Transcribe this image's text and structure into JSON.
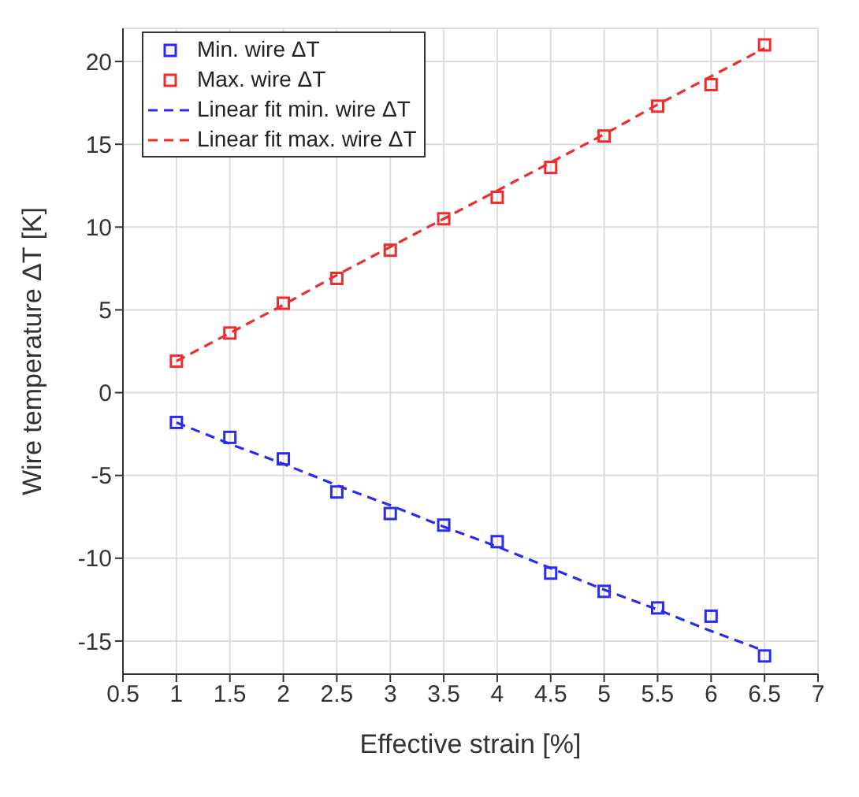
{
  "chart_data": {
    "type": "scatter",
    "xlabel": "Effective strain [%]",
    "ylabel": "Wire temperature ΔT [K]",
    "xlim": [
      0.5,
      7
    ],
    "xticks": [
      0.5,
      1,
      1.5,
      2,
      2.5,
      3,
      3.5,
      4,
      4.5,
      5,
      5.5,
      6,
      6.5,
      7
    ],
    "ylim": [
      -17,
      22
    ],
    "yticks": [
      -15,
      -10,
      -5,
      0,
      5,
      10,
      15,
      20
    ],
    "grid": true,
    "legend": "top left",
    "marker": "square",
    "x": [
      1,
      1.5,
      2,
      2.5,
      3,
      3.5,
      4,
      4.5,
      5,
      5.5,
      6,
      6.5
    ],
    "series": [
      {
        "name": "Min. wire ΔT",
        "color": "#2b2bf0",
        "values": [
          -1.8,
          -2.7,
          -4.0,
          -6.0,
          -7.3,
          -8.0,
          -9.0,
          -10.9,
          -12.0,
          -13.0,
          -13.5,
          -15.9
        ]
      },
      {
        "name": "Max. wire ΔT",
        "color": "#f02b2b",
        "values": [
          1.9,
          3.6,
          5.4,
          6.9,
          8.6,
          10.5,
          11.8,
          13.6,
          15.5,
          17.3,
          18.6,
          21.0
        ]
      },
      {
        "name": "Linear fit min. wire ΔT",
        "type": "line",
        "marker": "none",
        "line_style": "dashed",
        "color": "#2b2bf0",
        "values": [
          -1.8,
          -3.1,
          -4.3,
          -5.6,
          -6.8,
          -8.1,
          -9.3,
          -10.6,
          -11.9,
          -13.1,
          -14.4,
          -15.6
        ]
      },
      {
        "name": "Linear fit max. wire ΔT",
        "type": "line",
        "marker": "none",
        "line_style": "dashed",
        "color": "#f02b2b",
        "values": [
          1.9,
          3.6,
          5.3,
          7.1,
          8.8,
          10.5,
          12.2,
          13.9,
          15.6,
          17.4,
          19.1,
          20.8
        ]
      }
    ]
  }
}
